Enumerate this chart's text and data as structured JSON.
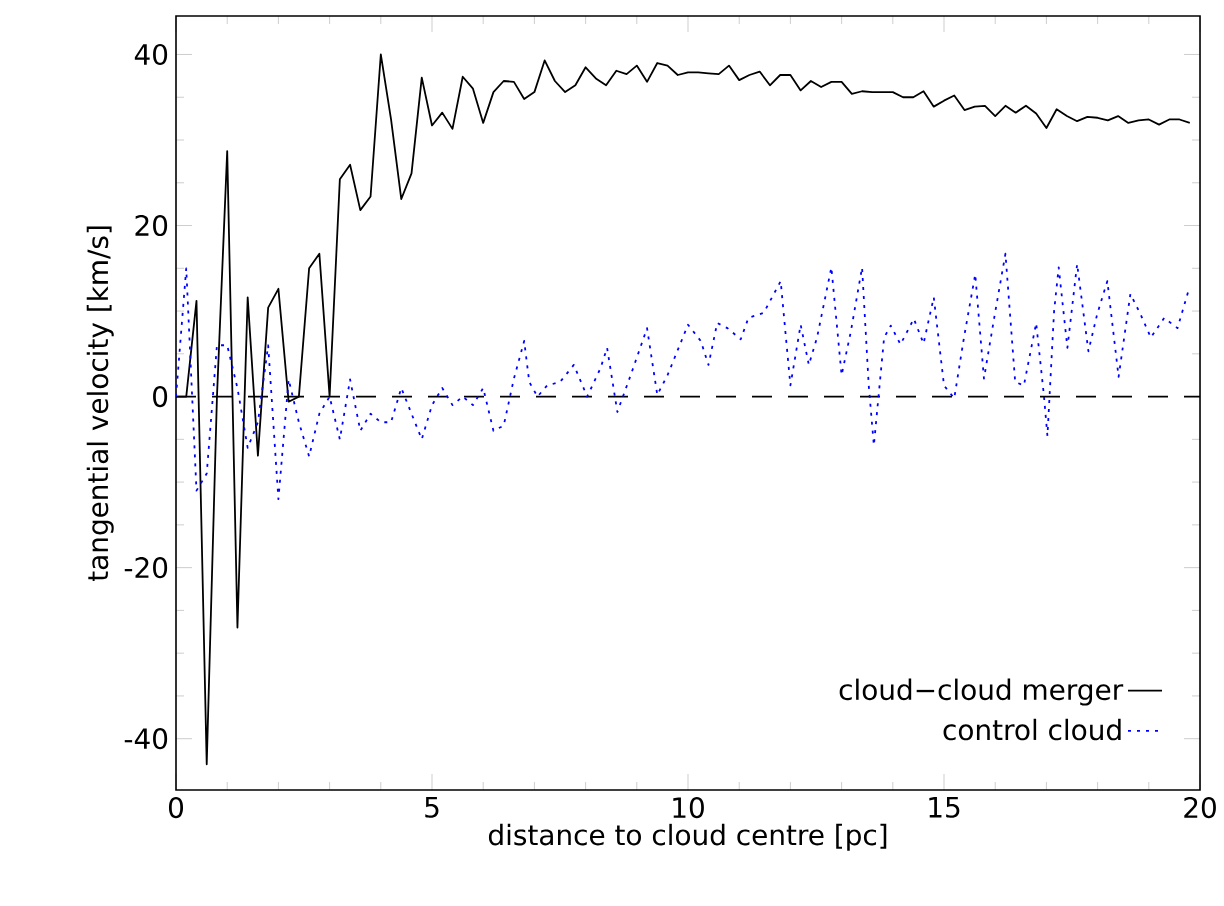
{
  "chart_data": {
    "type": "line",
    "xlabel": "distance to cloud centre [pc]",
    "ylabel": "tangential velocity [km/s]",
    "xlim": [
      0,
      20
    ],
    "ylim": [
      -46,
      44.5
    ],
    "xticks": [
      0,
      5,
      10,
      15,
      20
    ],
    "yticks": [
      -40,
      -20,
      0,
      20,
      40
    ],
    "legend": "bottom right",
    "ref_lines": [
      {
        "axis": "y",
        "value": 0,
        "color": "#000000",
        "line_style": "dashed"
      }
    ],
    "series": [
      {
        "name": "cloud−cloud merger",
        "color": "#000000",
        "line_style": "solid",
        "x": [
          0,
          0.2,
          0.4,
          0.6,
          0.8,
          1.0,
          1.2,
          1.4,
          1.6,
          1.8,
          2.0,
          2.2,
          2.4,
          2.6,
          2.8,
          3.0,
          3.2,
          3.4,
          3.6,
          3.8,
          4.0,
          4.2,
          4.4,
          4.6,
          4.8,
          5.0,
          5.2,
          5.4,
          5.6,
          5.8,
          6.0,
          6.2,
          6.4,
          6.6,
          6.8,
          7.0,
          7.2,
          7.4,
          7.6,
          7.8,
          8.0,
          8.2,
          8.4,
          8.6,
          8.8,
          9.0,
          9.2,
          9.4,
          9.6,
          9.8,
          10.0,
          10.2,
          10.4,
          10.6,
          10.8,
          11.0,
          11.2,
          11.4,
          11.6,
          11.8,
          12.0,
          12.2,
          12.4,
          12.6,
          12.8,
          13.0,
          13.2,
          13.4,
          13.6,
          13.8,
          14.0,
          14.2,
          14.4,
          14.6,
          14.8,
          15.0,
          15.2,
          15.4,
          15.6,
          15.8,
          16.0,
          16.2,
          16.4,
          16.6,
          16.8,
          17.0,
          17.2,
          17.4,
          17.6,
          17.8,
          18.0,
          18.2,
          18.4,
          18.6,
          18.8,
          19.0,
          19.2,
          19.4,
          19.6,
          19.8
        ],
        "values": [
          0,
          0,
          11.2,
          -43,
          0,
          28.7,
          -27,
          11.6,
          -6.9,
          10.4,
          12.6,
          -0.6,
          0,
          15,
          16.7,
          0,
          25.4,
          27.1,
          21.8,
          23.4,
          40,
          32.4,
          23.1,
          26.1,
          37.3,
          31.7,
          33.2,
          31.3,
          37.4,
          36,
          32,
          35.6,
          36.9,
          36.8,
          34.8,
          35.6,
          39.3,
          36.9,
          35.6,
          36.4,
          38.5,
          37.2,
          36.4,
          38.1,
          37.7,
          38.7,
          36.8,
          39,
          38.7,
          37.6,
          37.9,
          37.9,
          37.8,
          37.7,
          38.7,
          37,
          37.6,
          38,
          36.4,
          37.6,
          37.6,
          35.8,
          36.9,
          36.2,
          36.8,
          36.8,
          35.4,
          35.7,
          35.6,
          35.6,
          35.6,
          35,
          35,
          35.7,
          33.9,
          34.6,
          35.2,
          33.5,
          33.9,
          34,
          32.8,
          34,
          33.2,
          34,
          33.1,
          31.4,
          33.6,
          32.8,
          32.2,
          32.7,
          32.6,
          32.3,
          32.8,
          32,
          32.3,
          32.4,
          31.8,
          32.4,
          32.4,
          32
        ]
      },
      {
        "name": "control cloud",
        "color": "#0000ff",
        "line_style": "dotted",
        "x": [
          0,
          0.2,
          0.4,
          0.6,
          0.8,
          1.0,
          1.2,
          1.4,
          1.6,
          1.8,
          2.0,
          2.2,
          2.4,
          2.6,
          2.8,
          3.0,
          3.2,
          3.4,
          3.6,
          3.8,
          4.0,
          4.2,
          4.4,
          4.6,
          4.8,
          5.0,
          5.2,
          5.4,
          5.6,
          5.8,
          6.0,
          6.2,
          6.4,
          6.6,
          6.8,
          6.9,
          7.06,
          7.25,
          7.5,
          7.77,
          8.03,
          8.29,
          8.42,
          8.62,
          8.88,
          9.2,
          9.4,
          9.6,
          10.0,
          10.25,
          10.4,
          10.57,
          10.77,
          11.03,
          11.18,
          11.48,
          11.81,
          12.0,
          12.2,
          12.36,
          12.52,
          12.8,
          13.0,
          13.18,
          13.4,
          13.53,
          13.63,
          13.83,
          13.96,
          14.15,
          14.41,
          14.6,
          14.8,
          15.0,
          15.2,
          15.39,
          15.61,
          15.78,
          15.98,
          16.2,
          16.39,
          16.56,
          16.8,
          16.95,
          17.02,
          17.15,
          17.24,
          17.41,
          17.6,
          17.82,
          17.99,
          18.19,
          18.41,
          18.64,
          18.84,
          19.04,
          19.3,
          19.56,
          19.78
        ],
        "values": [
          0,
          15,
          -11,
          -9,
          6,
          6,
          1,
          -6,
          -3,
          6,
          -12,
          2,
          -3,
          -7,
          -2,
          0,
          -5,
          2,
          -4,
          -2,
          -3,
          -3,
          1,
          -2,
          -5,
          -1,
          1,
          -1,
          0,
          -1,
          1,
          -4,
          -3.4,
          2.1,
          6.5,
          1.7,
          0,
          1.3,
          1.7,
          3.7,
          0,
          3.3,
          5.7,
          -1.8,
          2.5,
          8,
          0.2,
          2.5,
          8.4,
          6.5,
          3.7,
          8.6,
          8,
          6.7,
          9.2,
          9.8,
          13.5,
          1.3,
          8.4,
          3.7,
          6.9,
          15.1,
          2.5,
          7.6,
          15.1,
          1.3,
          -5.7,
          6.9,
          8.3,
          6.1,
          9.1,
          6.2,
          11.6,
          1.3,
          -0.2,
          6.9,
          14.3,
          2.1,
          9.2,
          16.7,
          1.7,
          1.3,
          8.6,
          0.2,
          -4.6,
          10,
          15.1,
          5.7,
          15.5,
          5.3,
          9.6,
          13.5,
          2.3,
          12,
          9.6,
          6.9,
          9.2,
          8,
          12.5
        ]
      }
    ]
  }
}
